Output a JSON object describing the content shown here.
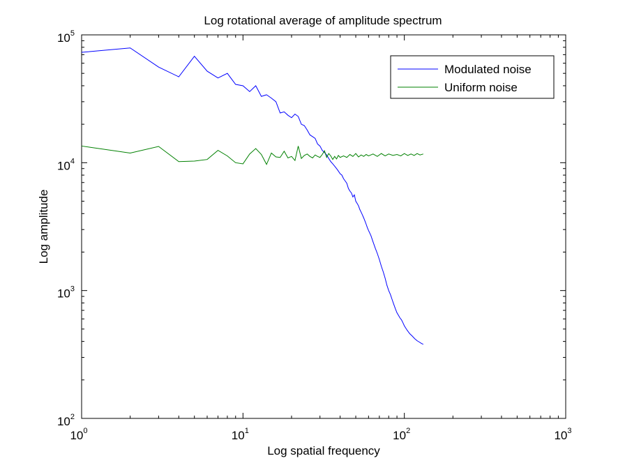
{
  "chart_data": {
    "type": "line",
    "title": "Log rotational average of amplitude spectrum",
    "xlabel": "Log spatial frequency",
    "ylabel": "Log amplitude",
    "xscale": "log",
    "yscale": "log",
    "xlim": [
      1,
      1000
    ],
    "ylim": [
      100,
      100000
    ],
    "grid": false,
    "legend_position": "top-right",
    "x_ticks": [
      {
        "base": "10",
        "exp": "0",
        "value": 1
      },
      {
        "base": "10",
        "exp": "1",
        "value": 10
      },
      {
        "base": "10",
        "exp": "2",
        "value": 100
      },
      {
        "base": "10",
        "exp": "3",
        "value": 1000
      }
    ],
    "y_ticks": [
      {
        "base": "10",
        "exp": "2",
        "value": 100
      },
      {
        "base": "10",
        "exp": "3",
        "value": 1000
      },
      {
        "base": "10",
        "exp": "4",
        "value": 10000
      },
      {
        "base": "10",
        "exp": "5",
        "value": 100000
      }
    ],
    "series": [
      {
        "name": "Modulated noise",
        "color": "#0000ff",
        "points": [
          [
            1,
            73000
          ],
          [
            2,
            79000
          ],
          [
            3,
            56000
          ],
          [
            4,
            47000
          ],
          [
            5,
            68000
          ],
          [
            6,
            52000
          ],
          [
            7,
            46000
          ],
          [
            8,
            50000
          ],
          [
            9,
            41000
          ],
          [
            10,
            40000
          ],
          [
            11,
            36000
          ],
          [
            12,
            40000
          ],
          [
            13,
            33000
          ],
          [
            14,
            34000
          ],
          [
            15,
            32000
          ],
          [
            16,
            30000
          ],
          [
            17,
            24500
          ],
          [
            18,
            25000
          ],
          [
            19,
            23500
          ],
          [
            20,
            22500
          ],
          [
            21,
            24000
          ],
          [
            22,
            23000
          ],
          [
            23,
            20000
          ],
          [
            24,
            19500
          ],
          [
            25,
            18000
          ],
          [
            26,
            16500
          ],
          [
            27,
            16000
          ],
          [
            28,
            15500
          ],
          [
            29,
            14000
          ],
          [
            30,
            13500
          ],
          [
            31,
            12500
          ],
          [
            32,
            12000
          ],
          [
            33,
            11500
          ],
          [
            34,
            10800
          ],
          [
            35,
            10200
          ],
          [
            36,
            9800
          ],
          [
            37,
            9400
          ],
          [
            38,
            9000
          ],
          [
            39,
            8600
          ],
          [
            40,
            8200
          ],
          [
            41,
            8000
          ],
          [
            42,
            7500
          ],
          [
            43,
            7200
          ],
          [
            44,
            6900
          ],
          [
            45,
            6300
          ],
          [
            46,
            6000
          ],
          [
            47,
            5800
          ],
          [
            48,
            5400
          ],
          [
            49,
            5600
          ],
          [
            50,
            5000
          ],
          [
            51,
            4800
          ],
          [
            52,
            4600
          ],
          [
            53,
            4300
          ],
          [
            54,
            4100
          ],
          [
            55,
            3900
          ],
          [
            56,
            3700
          ],
          [
            57,
            3500
          ],
          [
            58,
            3300
          ],
          [
            59,
            3100
          ],
          [
            60,
            2950
          ],
          [
            62,
            2700
          ],
          [
            64,
            2400
          ],
          [
            66,
            2150
          ],
          [
            68,
            1950
          ],
          [
            70,
            1750
          ],
          [
            72,
            1550
          ],
          [
            74,
            1400
          ],
          [
            76,
            1250
          ],
          [
            78,
            1100
          ],
          [
            80,
            1000
          ],
          [
            82,
            930
          ],
          [
            84,
            850
          ],
          [
            86,
            780
          ],
          [
            88,
            720
          ],
          [
            90,
            670
          ],
          [
            92,
            640
          ],
          [
            94,
            610
          ],
          [
            96,
            590
          ],
          [
            98,
            560
          ],
          [
            100,
            530
          ],
          [
            104,
            490
          ],
          [
            108,
            460
          ],
          [
            112,
            440
          ],
          [
            116,
            420
          ],
          [
            120,
            405
          ],
          [
            124,
            395
          ],
          [
            128,
            385
          ],
          [
            131,
            380
          ]
        ]
      },
      {
        "name": "Uniform noise",
        "color": "#008000",
        "points": [
          [
            1,
            13500
          ],
          [
            2,
            11900
          ],
          [
            3,
            13400
          ],
          [
            4,
            10200
          ],
          [
            5,
            10300
          ],
          [
            6,
            10600
          ],
          [
            7,
            12500
          ],
          [
            8,
            11300
          ],
          [
            9,
            10000
          ],
          [
            10,
            9800
          ],
          [
            11,
            11700
          ],
          [
            12,
            12900
          ],
          [
            13,
            11600
          ],
          [
            14,
            9700
          ],
          [
            15,
            11900
          ],
          [
            16,
            11100
          ],
          [
            17,
            11000
          ],
          [
            18,
            12300
          ],
          [
            19,
            10900
          ],
          [
            20,
            11200
          ],
          [
            21,
            10400
          ],
          [
            22,
            13500
          ],
          [
            23,
            10800
          ],
          [
            24,
            11400
          ],
          [
            25,
            11700
          ],
          [
            26,
            11200
          ],
          [
            27,
            10900
          ],
          [
            28,
            11500
          ],
          [
            29,
            11200
          ],
          [
            30,
            11000
          ],
          [
            31,
            11600
          ],
          [
            32,
            12400
          ],
          [
            33,
            11000
          ],
          [
            34,
            11800
          ],
          [
            35,
            11300
          ],
          [
            36,
            10600
          ],
          [
            37,
            11200
          ],
          [
            38,
            10700
          ],
          [
            39,
            11400
          ],
          [
            40,
            11000
          ],
          [
            42,
            11300
          ],
          [
            44,
            11000
          ],
          [
            46,
            11600
          ],
          [
            48,
            11200
          ],
          [
            50,
            11800
          ],
          [
            52,
            11100
          ],
          [
            54,
            11500
          ],
          [
            56,
            11200
          ],
          [
            58,
            11600
          ],
          [
            60,
            11300
          ],
          [
            64,
            11700
          ],
          [
            68,
            11200
          ],
          [
            72,
            11800
          ],
          [
            76,
            11300
          ],
          [
            80,
            11700
          ],
          [
            85,
            11400
          ],
          [
            90,
            11600
          ],
          [
            95,
            11300
          ],
          [
            100,
            11800
          ],
          [
            105,
            11400
          ],
          [
            110,
            11700
          ],
          [
            115,
            11400
          ],
          [
            120,
            11800
          ],
          [
            125,
            11500
          ],
          [
            131,
            11700
          ]
        ]
      }
    ]
  }
}
